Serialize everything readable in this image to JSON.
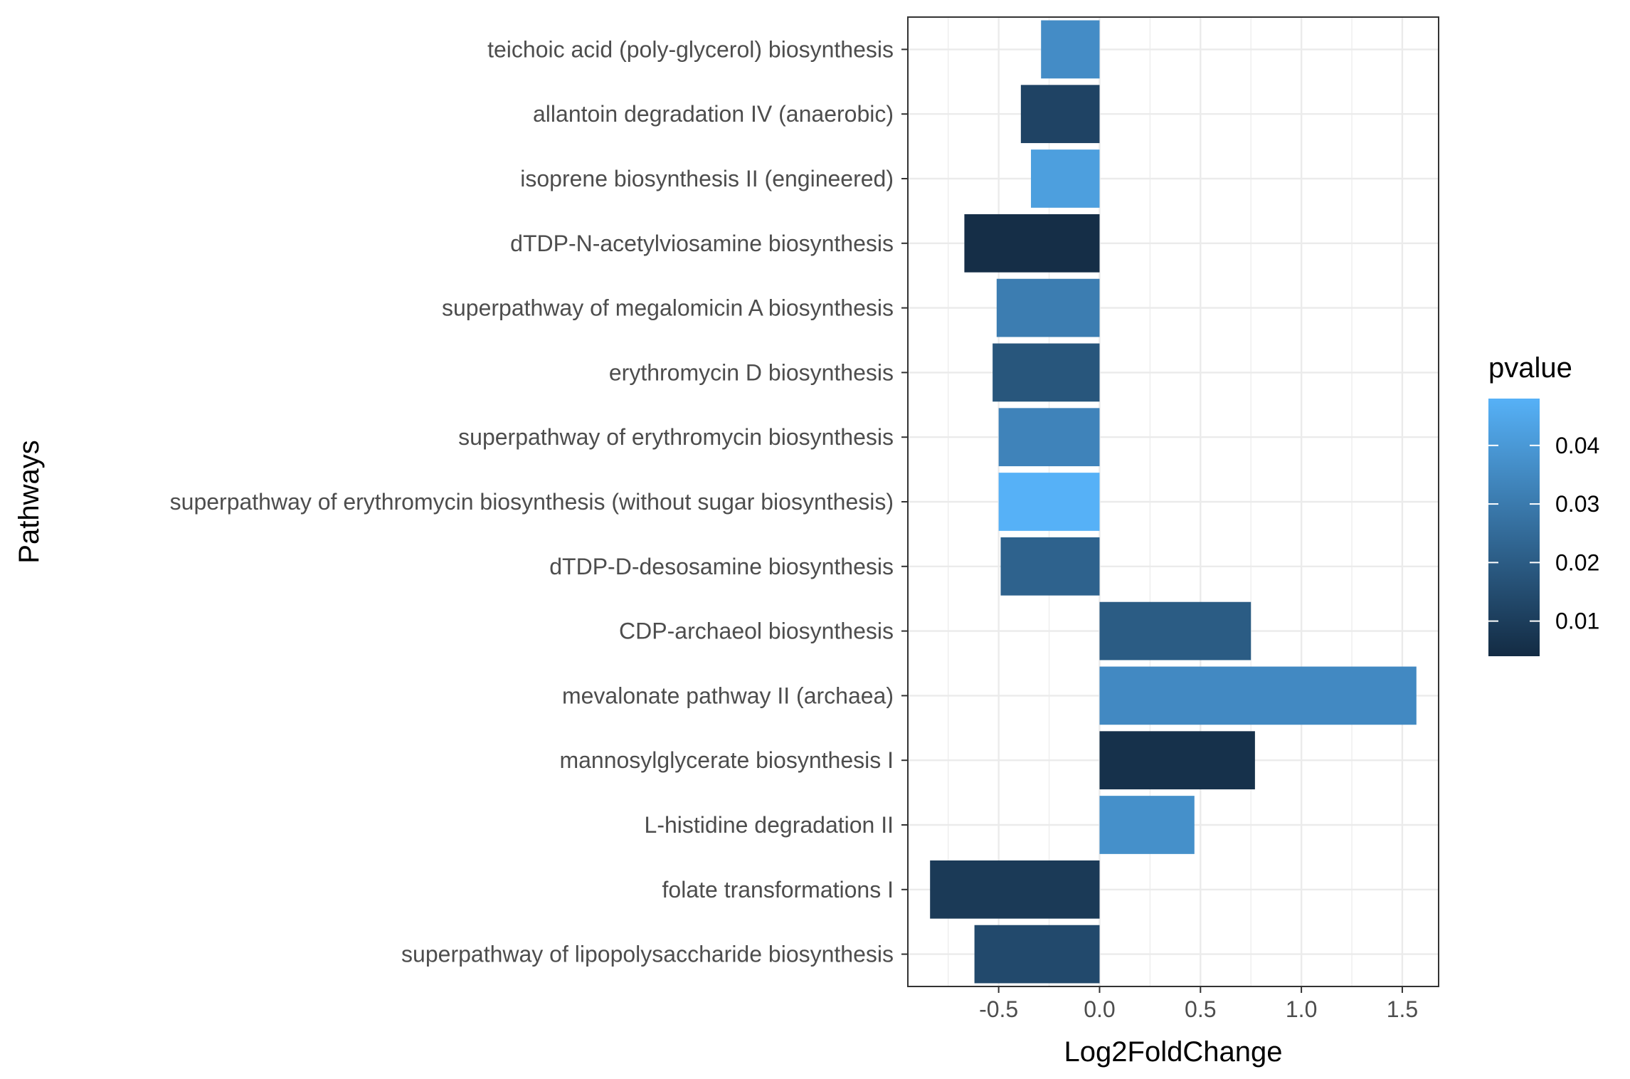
{
  "chart_data": {
    "type": "bar",
    "orientation": "horizontal",
    "xlabel": "Log2FoldChange",
    "ylabel": "Pathways",
    "xlim": [
      -0.95,
      1.68
    ],
    "xticks": [
      -0.5,
      0.0,
      0.5,
      1.0,
      1.5
    ],
    "xtick_labels": [
      "-0.5",
      "0.0",
      "0.5",
      "1.0",
      "1.5"
    ],
    "grid": true,
    "legend": {
      "title": "pvalue",
      "placement": "right",
      "type": "colorbar",
      "range": [
        0.004,
        0.048
      ],
      "ticks": [
        0.01,
        0.02,
        0.03,
        0.04
      ],
      "tick_labels": [
        "0.01",
        "0.02",
        "0.03",
        "0.04"
      ],
      "low_color": "#132b43",
      "high_color": "#56b1f7"
    },
    "categories": [
      "teichoic acid (poly-glycerol) biosynthesis",
      "allantoin degradation IV (anaerobic)",
      "isoprene biosynthesis II (engineered)",
      "dTDP-N-acetylviosamine biosynthesis",
      "superpathway of megalomicin A biosynthesis",
      "erythromycin D biosynthesis",
      "superpathway of erythromycin biosynthesis",
      "superpathway of erythromycin biosynthesis (without sugar biosynthesis)",
      "dTDP-D-desosamine biosynthesis",
      "CDP-archaeol biosynthesis",
      "mevalonate pathway II (archaea)",
      "mannosylglycerate biosynthesis I",
      "L-histidine degradation II",
      "folate transformations I",
      "superpathway of lipopolysaccharide biosynthesis"
    ],
    "values": [
      -0.29,
      -0.39,
      -0.34,
      -0.67,
      -0.51,
      -0.53,
      -0.5,
      -0.5,
      -0.49,
      0.75,
      1.57,
      0.77,
      0.47,
      -0.84,
      -0.62
    ],
    "pvalues": [
      0.036,
      0.012,
      0.042,
      0.005,
      0.031,
      0.018,
      0.033,
      0.048,
      0.022,
      0.02,
      0.035,
      0.006,
      0.037,
      0.009,
      0.014
    ]
  }
}
